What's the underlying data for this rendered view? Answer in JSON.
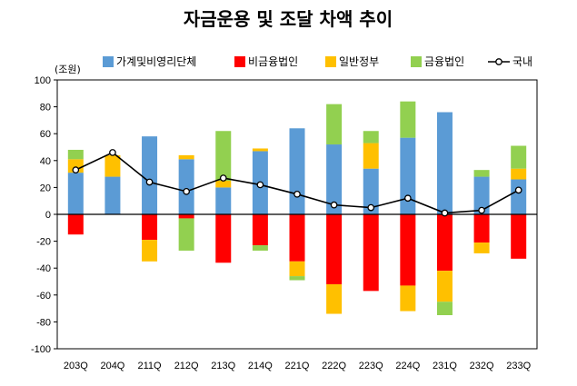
{
  "chart_data": {
    "type": "bar",
    "stacked": true,
    "title": "자금운용 및 조달 차액 추이",
    "unit_label": "(조원)",
    "ylim": [
      -100,
      100
    ],
    "yticks": [
      100,
      80,
      60,
      40,
      20,
      0,
      -20,
      -40,
      -60,
      -80,
      -100
    ],
    "categories": [
      "203Q",
      "204Q",
      "211Q",
      "212Q",
      "213Q",
      "214Q",
      "221Q",
      "222Q",
      "223Q",
      "224Q",
      "231Q",
      "232Q",
      "233Q"
    ],
    "series": [
      {
        "name": "가계및비영리단체",
        "color": "#5B9BD5",
        "values": [
          31,
          28,
          58,
          41,
          20,
          47,
          64,
          52,
          34,
          57,
          76,
          28,
          26
        ]
      },
      {
        "name": "비금융법인",
        "color": "#FF0000",
        "values": [
          -15,
          0,
          -19,
          -3,
          -36,
          -23,
          -35,
          -52,
          -57,
          -53,
          -42,
          -21,
          -33
        ]
      },
      {
        "name": "일반정부",
        "color": "#FFC000",
        "values": [
          10,
          16,
          -16,
          3,
          5,
          2,
          -11,
          -22,
          19,
          -19,
          -23,
          -8,
          8
        ]
      },
      {
        "name": "금융법인",
        "color": "#92D050",
        "values": [
          7,
          0,
          0,
          -24,
          37,
          -4,
          -3,
          30,
          9,
          27,
          -10,
          5,
          17
        ]
      }
    ],
    "line": {
      "name": "국내",
      "color": "#000000",
      "values": [
        33,
        46,
        24,
        17,
        27,
        22,
        15,
        7,
        5,
        12,
        1,
        3,
        18
      ]
    }
  }
}
